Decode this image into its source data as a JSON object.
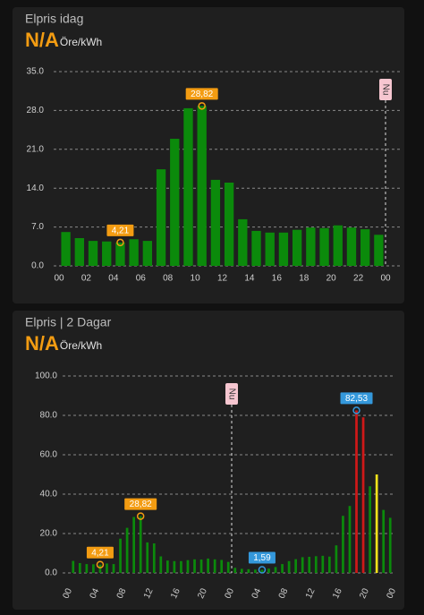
{
  "chart_data": [
    {
      "type": "bar",
      "title": "Elpris idag",
      "state": "N/A",
      "unit": "Öre/kWh",
      "categories": [
        "00",
        null,
        "02",
        null,
        "04",
        null,
        "06",
        null,
        "08",
        null,
        "10",
        null,
        "12",
        null,
        "14",
        null,
        "16",
        null,
        "18",
        null,
        "20",
        null,
        "22",
        null
      ],
      "x_end_label": "00",
      "values": [
        6.1,
        5.0,
        4.5,
        4.4,
        4.21,
        4.8,
        4.5,
        17.4,
        22.9,
        28.4,
        28.82,
        15.5,
        15.0,
        8.4,
        6.3,
        6.0,
        6.0,
        6.5,
        6.9,
        6.8,
        7.3,
        6.9,
        6.6,
        5.6
      ],
      "value_labels": [
        null,
        null,
        null,
        null,
        "4,21",
        null,
        null,
        null,
        null,
        null,
        "28,82",
        null,
        null,
        null,
        null,
        null,
        null,
        null,
        null,
        null,
        null,
        null,
        null,
        null
      ],
      "value_label_colors": [
        null,
        null,
        null,
        null,
        "#f39c12",
        null,
        null,
        null,
        null,
        null,
        "#f39c12",
        null,
        null,
        null,
        null,
        null,
        null,
        null,
        null,
        null,
        null,
        null,
        null,
        null
      ],
      "color": "#0b8a0b",
      "now_label": "Nu",
      "now_x": 24,
      "ylim": [
        0,
        35
      ],
      "yticks": [
        {
          "value": 0,
          "label": "0.0"
        },
        {
          "value": 7,
          "label": "7.0"
        },
        {
          "value": 14,
          "label": "14.0"
        },
        {
          "value": 21,
          "label": "21.0"
        },
        {
          "value": 28,
          "label": "28.0"
        },
        {
          "value": 35,
          "label": "35.0"
        }
      ],
      "grid": true
    },
    {
      "type": "bar",
      "title": "Elpris | 2 Dagar",
      "state": "N/A",
      "unit": "Öre/kWh",
      "categories": [
        "00",
        null,
        null,
        null,
        "04",
        null,
        null,
        null,
        "08",
        null,
        null,
        null,
        "12",
        null,
        null,
        null,
        "16",
        null,
        null,
        null,
        "20",
        null,
        null,
        null,
        "00",
        null,
        null,
        null,
        "04",
        null,
        null,
        null,
        "08",
        null,
        null,
        null,
        "12",
        null,
        null,
        null,
        "16",
        null,
        null,
        null,
        "20",
        null,
        null,
        null
      ],
      "x_end_label": "00",
      "values": [
        6.1,
        5.0,
        4.5,
        4.4,
        4.21,
        4.8,
        4.5,
        17.4,
        22.9,
        28.4,
        28.82,
        15.5,
        15.0,
        8.4,
        6.3,
        6.0,
        6.0,
        6.5,
        6.9,
        6.8,
        7.3,
        6.9,
        6.6,
        5.6,
        2.6,
        2.1,
        1.9,
        1.7,
        1.59,
        2.2,
        3.0,
        4.5,
        6.0,
        7.0,
        8.0,
        8.2,
        8.5,
        8.7,
        8.3,
        14.0,
        29.0,
        34.0,
        82.53,
        79.0,
        44.0,
        50.0,
        32.0,
        28.0
      ],
      "value_labels": [
        null,
        null,
        null,
        null,
        "4,21",
        null,
        null,
        null,
        null,
        null,
        "28,82",
        null,
        null,
        null,
        null,
        null,
        null,
        null,
        null,
        null,
        null,
        null,
        null,
        null,
        null,
        null,
        null,
        null,
        "1,59",
        null,
        null,
        null,
        null,
        null,
        null,
        null,
        null,
        null,
        null,
        null,
        null,
        null,
        "82,53",
        null,
        null,
        null,
        null,
        null
      ],
      "value_label_colors": [
        null,
        null,
        null,
        null,
        "#f39c12",
        null,
        null,
        null,
        null,
        null,
        "#f39c12",
        null,
        null,
        null,
        null,
        null,
        null,
        null,
        null,
        null,
        null,
        null,
        null,
        null,
        null,
        null,
        null,
        null,
        "#3498db",
        null,
        null,
        null,
        null,
        null,
        null,
        null,
        null,
        null,
        null,
        null,
        null,
        null,
        "#3498db",
        null,
        null,
        null,
        null,
        null
      ],
      "colors": [
        "#0b8a0b",
        "#0b8a0b",
        "#0b8a0b",
        "#0b8a0b",
        "#0b8a0b",
        "#0b8a0b",
        "#0b8a0b",
        "#0b8a0b",
        "#0b8a0b",
        "#0b8a0b",
        "#0b8a0b",
        "#0b8a0b",
        "#0b8a0b",
        "#0b8a0b",
        "#0b8a0b",
        "#0b8a0b",
        "#0b8a0b",
        "#0b8a0b",
        "#0b8a0b",
        "#0b8a0b",
        "#0b8a0b",
        "#0b8a0b",
        "#0b8a0b",
        "#0b8a0b",
        "#0b8a0b",
        "#0b8a0b",
        "#0b8a0b",
        "#0b8a0b",
        "#0b8a0b",
        "#0b8a0b",
        "#0b8a0b",
        "#0b8a0b",
        "#0b8a0b",
        "#0b8a0b",
        "#0b8a0b",
        "#0b8a0b",
        "#0b8a0b",
        "#0b8a0b",
        "#0b8a0b",
        "#0b8a0b",
        "#0b8a0b",
        "#0b8a0b",
        "#d01818",
        "#d01818",
        "#0b8a0b",
        "#f2e21a",
        "#0b8a0b",
        "#0b8a0b"
      ],
      "now_label": "Nu",
      "now_x": 24,
      "ylim": [
        0,
        100
      ],
      "yticks": [
        {
          "value": 0,
          "label": "0.0"
        },
        {
          "value": 20,
          "label": "20.0"
        },
        {
          "value": 40,
          "label": "40.0"
        },
        {
          "value": 60,
          "label": "60.0"
        },
        {
          "value": 80,
          "label": "80.0"
        },
        {
          "value": 100,
          "label": "100.0"
        }
      ],
      "grid": true
    }
  ]
}
